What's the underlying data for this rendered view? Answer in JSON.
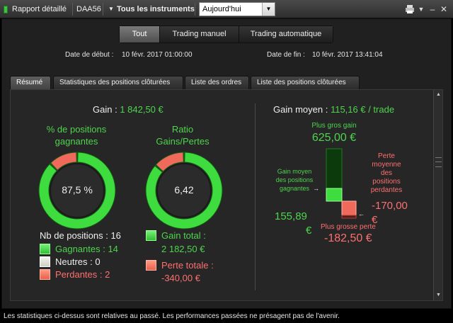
{
  "topbar": {
    "report_label": "Rapport détaillé",
    "account": "DAA56",
    "instruments_label": "Tous les instruments",
    "period": "Aujourd'hui",
    "print_icon": "printer-icon",
    "menu_icon": "menu-icon",
    "minimize_icon": "minimize-icon",
    "close_icon": "close-icon"
  },
  "filter": {
    "buttons": [
      "Tout",
      "Trading manuel",
      "Trading automatique"
    ],
    "active": "Tout"
  },
  "dates": {
    "start_label": "Date de début :",
    "start_value": "10 févr. 2017 01:00:00",
    "end_label": "Date de fin :",
    "end_value": "10 févr. 2017 13:41:04"
  },
  "tabs": [
    "Résumé",
    "Statistiques des positions clôturées",
    "Liste des ordres",
    "Liste des positions clôturées"
  ],
  "active_tab": "Résumé",
  "summary": {
    "gain_label": "Gain :",
    "gain_value": "1 842,50 €",
    "win_pct_title_1": "% de positions",
    "win_pct_title_2": "gagnantes",
    "win_pct_value": "87,5 %",
    "win_pct_fraction": 0.875,
    "ratio_title_1": "Ratio",
    "ratio_title_2": "Gains/Pertes",
    "ratio_value": "6,42",
    "ratio_gain_fraction": 0.865,
    "positions_label": "Nb de positions : 16",
    "winning_label": "Gagnantes : 14",
    "neutral_label": "Neutres : 0",
    "losing_label": "Perdantes : 2",
    "total_gain_label": "Gain total :",
    "total_gain_value": "2 182,50 €",
    "total_loss_label": "Perte totale :",
    "total_loss_value": "-340,00 €"
  },
  "average": {
    "title": "Gain moyen :",
    "value": "115,16 € / trade",
    "max_gain_label": "Plus gros gain",
    "max_gain_value": "625,00 €",
    "avg_win_label_1": "Gain moyen",
    "avg_win_label_2": "des positions",
    "avg_win_label_3": "gagnantes",
    "avg_win_value_1": "155,89",
    "avg_win_value_2": "€",
    "avg_loss_label_1": "Perte",
    "avg_loss_label_2": "moyenne",
    "avg_loss_label_3": "des",
    "avg_loss_label_4": "positions",
    "avg_loss_label_5": "perdantes",
    "avg_loss_value_1": "-170,00",
    "avg_loss_value_2": "€",
    "max_loss_label": "Plus grosse perte",
    "max_loss_value": "-182,50 €"
  },
  "footer": "Les statistiques ci-dessus sont relatives au passé. Les performances passées ne présagent pas de l'avenir.",
  "colors": {
    "gain": "#4ed44e",
    "loss": "#ff6f6f",
    "ring_green": "#3fdc3f",
    "ring_red": "#f06a5c"
  }
}
